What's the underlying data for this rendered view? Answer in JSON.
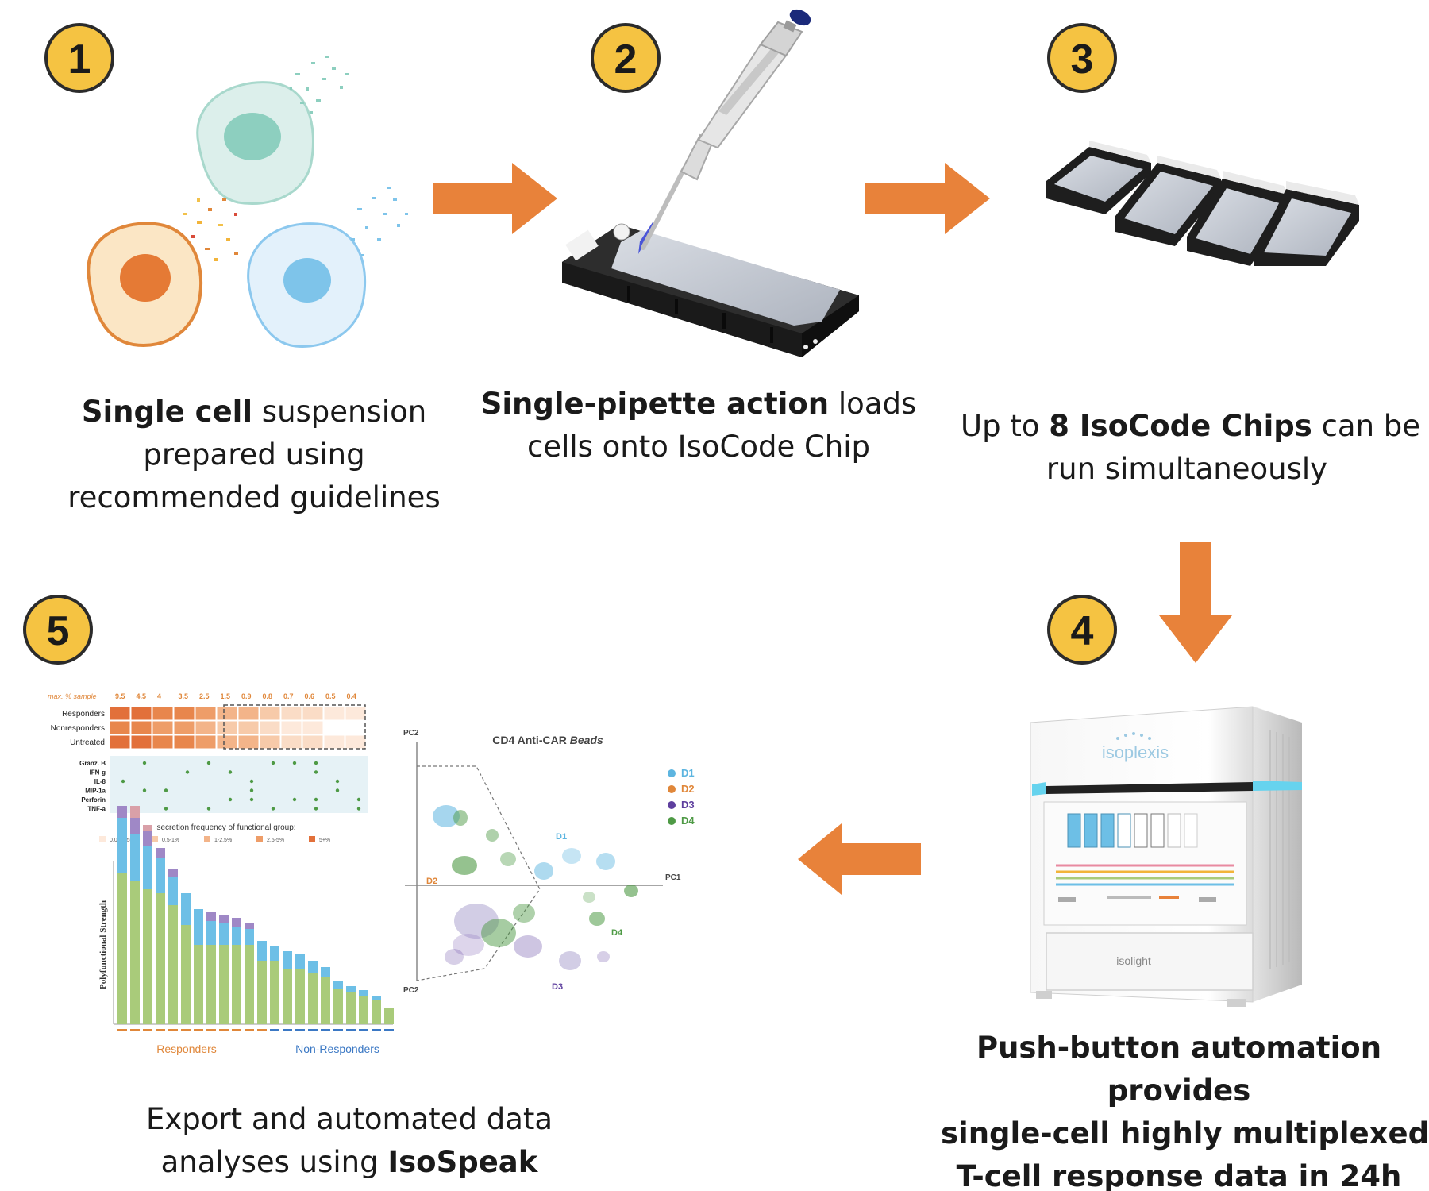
{
  "steps": [
    {
      "number": "1"
    },
    {
      "number": "2"
    },
    {
      "number": "3"
    },
    {
      "number": "4"
    },
    {
      "number": "5"
    }
  ],
  "captions": {
    "step1": {
      "bold": "Single cell",
      "text1": " suspension",
      "line2": "prepared using",
      "line3": "recommended guidelines"
    },
    "step2": {
      "bold": "Single-pipette action",
      "text1": " loads",
      "line2": "cells onto IsoCode Chip"
    },
    "step3": {
      "pre": "Up to ",
      "bold": "8 IsoCode Chips",
      "text1": " can be",
      "line2": "run simultaneously"
    },
    "step4": {
      "line1": "Push-button automation",
      "line2": "provides",
      "line3": "single-cell highly multiplexed",
      "line4": "T-cell response data in 24h"
    },
    "step5": {
      "line1": "Export and automated data",
      "pre2": "analyses using ",
      "bold": "IsoSpeak"
    }
  },
  "device": {
    "brand": "isoplexis",
    "drawer_label": "isolight"
  },
  "heatmap": {
    "header_label": "max. % sample",
    "header_values": [
      "9.5",
      "4.5",
      "4",
      "3.5",
      "2.5",
      "1.5",
      "0.9",
      "0.8",
      "0.7",
      "0.6",
      "0.5",
      "0.4"
    ],
    "rows": [
      "Responders",
      "Nonresponders",
      "Untreated"
    ],
    "cytokines": [
      "Granz. B",
      "IFN-g",
      "IL-8",
      "MIP-1a",
      "Perforin",
      "TNF-a"
    ],
    "legend_title": "secretion frequency of functional group:",
    "legend_items": [
      "0.05-0.5%",
      "0.5-1%",
      "1-2.5%",
      "2.5-5%",
      "5+%"
    ]
  },
  "bar_chart": {
    "ylabel": "Polyfunctional Strength",
    "group_left": "Responders",
    "group_right": "Non-Responders"
  },
  "pca": {
    "title": "CD4 Anti-CAR ",
    "title_italic": "Beads",
    "axis_top": "PC2",
    "axis_bottom": "PC2",
    "axis_right": "PC1",
    "legend": [
      "D1",
      "D2",
      "D3",
      "D4"
    ],
    "labels": [
      "D1",
      "D2",
      "D3",
      "D4"
    ]
  },
  "colors": {
    "arrow": "#E8823A",
    "badge_fill": "#F5C342",
    "badge_stroke": "#2b2b2b",
    "d1": "#5DB5E0",
    "d2": "#E0873A",
    "d3": "#5E3F9E",
    "d4": "#4E9A45",
    "bar_green": "#A9CB7A",
    "bar_blue": "#6DBFE6",
    "bar_pink": "#D9A0A8",
    "bar_purple": "#9F88C6"
  }
}
